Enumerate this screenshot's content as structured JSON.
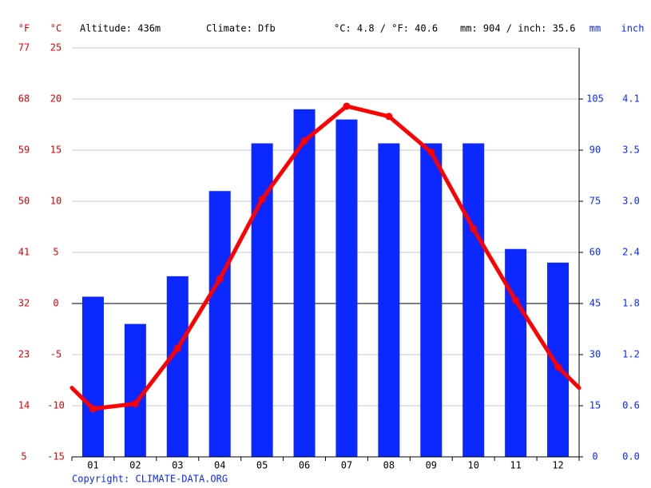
{
  "chart_data": {
    "type": "bar",
    "left_units": [
      "°F",
      "°C"
    ],
    "right_units": [
      "mm",
      "inch"
    ],
    "info": [
      "Altitude: 436m",
      "Climate: Dfb",
      "°C: 4.8 / °F: 40.6",
      "mm: 904 / inch: 35.6"
    ],
    "copyright": "Copyright: CLIMATE-DATA.ORG",
    "categories": [
      "01",
      "02",
      "03",
      "04",
      "05",
      "06",
      "07",
      "08",
      "09",
      "10",
      "11",
      "12"
    ],
    "precipitation": {
      "color": "#0a28ff",
      "values": [
        47,
        39,
        53,
        78,
        92,
        102,
        99,
        92,
        92,
        92,
        61,
        57
      ]
    },
    "temperature": {
      "color": "#ff0000",
      "values": [
        -10.3,
        -9.8,
        -4.4,
        2.4,
        10.2,
        15.9,
        19.3,
        18.3,
        14.8,
        7.3,
        0.3,
        -6.2
      ]
    },
    "ylim": [
      -15,
      25
    ],
    "yticks": [
      -15,
      -10,
      -5,
      0,
      5,
      10,
      15,
      20,
      25
    ],
    "y3lim": [
      5,
      77
    ],
    "y3ticks": [
      5,
      14,
      23,
      32,
      41,
      50,
      59,
      68,
      77
    ],
    "y2lim": [
      0,
      120
    ],
    "y2ticks": [
      0,
      15,
      30,
      45,
      60,
      75,
      90,
      105
    ],
    "y4lim": [
      0,
      4.72
    ],
    "y4ticks": [
      {
        "value": 0,
        "label": "0.0"
      },
      {
        "value": 0.59,
        "label": "0.6"
      },
      {
        "value": 1.18,
        "label": "1.2"
      },
      {
        "value": 1.77,
        "label": "1.8"
      },
      {
        "value": 2.36,
        "label": "2.4"
      },
      {
        "value": 2.95,
        "label": "3.0"
      },
      {
        "value": 3.54,
        "label": "3.5"
      },
      {
        "value": 4.13,
        "label": "4.1"
      }
    ],
    "grid": true
  }
}
